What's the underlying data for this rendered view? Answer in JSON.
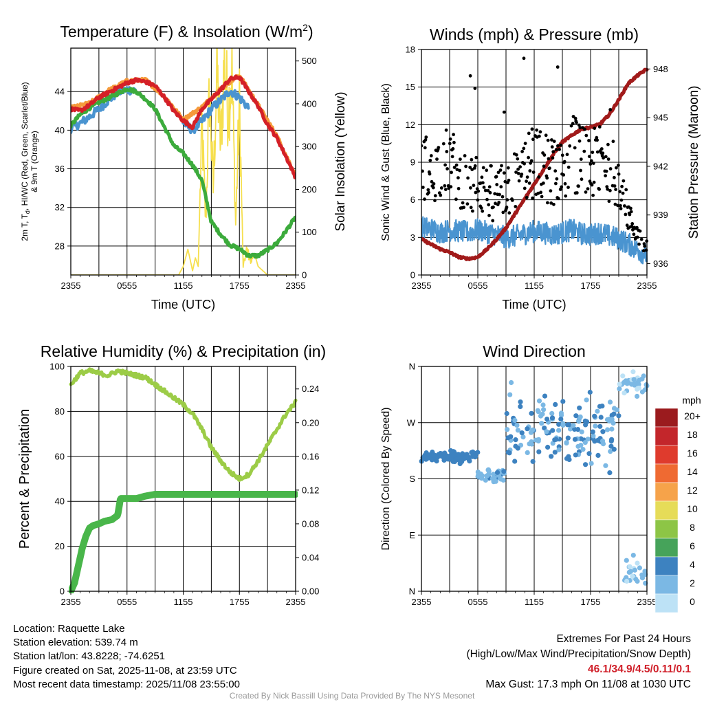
{
  "colors": {
    "red": "#d42027",
    "green": "#3cab3c",
    "blue": "#4a94d0",
    "orange": "#f59a3a",
    "yellow": "#f6df4e",
    "maroon": "#a11a1a",
    "black": "#000000",
    "rh": "#9ccc47",
    "precip": "#49b64a"
  },
  "chart_data": [
    {
      "id": "temp",
      "type": "line",
      "title": "Temperature (F) & Insolation (W/m",
      "title_sup": "2",
      "title_close": ")",
      "xlabel": "Time (UTC)",
      "ylabel_line1": "2m T, T",
      "ylabel_sub": "d",
      "ylabel_line1b": ", HI/WC (Red, Green, Scarlet/Blue)",
      "ylabel_line2": "& 9m T (Orange)",
      "ylabel_right": "Solar Insolation (Yellow)",
      "x_ticks": [
        "2355",
        "0555",
        "1155",
        "1755",
        "2355"
      ],
      "ylim": [
        25,
        48.5
      ],
      "y_ticks": [
        "28",
        "32",
        "36",
        "40",
        "44"
      ],
      "y_tick_values": [
        28,
        32,
        36,
        40,
        44
      ],
      "ylim_right": [
        0,
        530
      ],
      "y_ticks_right": [
        "0",
        "100",
        "200",
        "300",
        "400",
        "500"
      ],
      "y_tick_values_right": [
        0,
        100,
        200,
        300,
        400,
        500
      ],
      "series": [
        {
          "name": "2m T",
          "color": "red",
          "axis": "left",
          "x": [
            0,
            1,
            2,
            3,
            4,
            5,
            6,
            7,
            8,
            9,
            10,
            11,
            12,
            13,
            14,
            15,
            16,
            17,
            18,
            19,
            20,
            21,
            22,
            23,
            24
          ],
          "values": [
            42.2,
            42.0,
            42.6,
            43.4,
            43.9,
            44.4,
            44.9,
            45.2,
            45.0,
            44.6,
            43.4,
            42.0,
            41.0,
            40.3,
            42.2,
            43.2,
            44.2,
            45.3,
            45.5,
            44.0,
            42.5,
            40.6,
            39.2,
            37.2,
            35.1
          ]
        },
        {
          "name": "9m T",
          "color": "orange",
          "axis": "left",
          "x": [
            0,
            2,
            4,
            6,
            8,
            10,
            12,
            14,
            16,
            18,
            20,
            22,
            24
          ],
          "values": [
            42.3,
            42.8,
            44.1,
            45.1,
            45.2,
            43.5,
            41.1,
            42.4,
            44.3,
            45.7,
            42.6,
            39.4,
            35.3
          ]
        },
        {
          "name": "Td",
          "color": "green",
          "axis": "left",
          "x": [
            0,
            1,
            2,
            3,
            4,
            5,
            6,
            7,
            8,
            9,
            10,
            11,
            12,
            13,
            14,
            15,
            16,
            17,
            18,
            19,
            20,
            21,
            22,
            23,
            24
          ],
          "values": [
            40.5,
            41.6,
            42.3,
            42.9,
            43.3,
            43.8,
            44.3,
            44.0,
            43.2,
            42.2,
            40.3,
            38.4,
            37.6,
            36.4,
            34.8,
            30.5,
            29.2,
            28.1,
            27.7,
            27.0,
            27.0,
            27.6,
            28.3,
            29.6,
            31.0
          ]
        },
        {
          "name": "HI/WC",
          "color": "blue",
          "axis": "left",
          "x": [
            0,
            1,
            2,
            3,
            4,
            5,
            6,
            7,
            8,
            9,
            10,
            11,
            12,
            13,
            14,
            15,
            16,
            17,
            18,
            19
          ],
          "values": [
            40.2,
            40.7,
            41.4,
            42.2,
            43.1,
            43.9,
            44.2,
            44.1,
            null,
            null,
            null,
            null,
            40.8,
            40.0,
            40.9,
            42.2,
            43.1,
            44.1,
            43.4,
            42.3
          ]
        },
        {
          "name": "Solar Insolation",
          "color": "yellow",
          "axis": "right",
          "x": [
            0,
            11.5,
            12,
            12.5,
            13,
            13.3,
            13.6,
            14,
            14.4,
            14.8,
            15.2,
            15.6,
            16,
            16.4,
            16.8,
            17.2,
            17.6,
            18,
            18.4,
            18.8,
            19.2,
            19.6,
            20,
            20.5,
            21,
            22,
            24
          ],
          "values": [
            0,
            0,
            20,
            60,
            10,
            40,
            20,
            350,
            120,
            430,
            200,
            480,
            300,
            510,
            380,
            480,
            120,
            400,
            20,
            60,
            30,
            50,
            20,
            10,
            0,
            0,
            0
          ]
        }
      ]
    },
    {
      "id": "wind",
      "type": "scatter",
      "title": "Winds (mph) & Pressure (mb)",
      "xlabel": "Time (UTC)",
      "ylabel": "Sonic Wind & Gust (Blue, Black)",
      "ylabel_right": "Station Pressure (Maroon)",
      "x_ticks": [
        "2355",
        "0555",
        "1155",
        "1755",
        "2355"
      ],
      "ylim": [
        0,
        18
      ],
      "y_ticks": [
        "0",
        "3",
        "6",
        "9",
        "12",
        "15",
        "18"
      ],
      "y_tick_values": [
        0,
        3,
        6,
        9,
        12,
        15,
        18
      ],
      "ylim_right": [
        935.3,
        949.2
      ],
      "y_ticks_right": [
        "936",
        "939",
        "942",
        "945",
        "948"
      ],
      "y_tick_values_right": [
        936,
        939,
        942,
        945,
        948
      ],
      "wind_x": [
        0,
        1,
        2,
        3,
        4,
        5,
        6,
        7,
        8,
        9,
        10,
        11,
        12,
        13,
        14,
        15,
        16,
        17,
        18,
        19,
        20,
        21,
        22,
        23,
        24
      ],
      "wind_values": [
        3.8,
        3.7,
        3.4,
        3.6,
        3.5,
        3.4,
        3.6,
        3.4,
        3.2,
        3.0,
        3.1,
        3.3,
        3.5,
        3.4,
        3.2,
        3.4,
        3.6,
        3.3,
        3.2,
        3.4,
        3.1,
        2.9,
        2.5,
        2.0,
        1.6
      ],
      "gust_band_low": [
        6.2,
        5.5,
        6.0,
        6.5,
        5.5,
        4.5,
        5.0,
        4.5,
        4.2,
        4.5,
        5.0,
        5.5,
        6.0,
        5.8,
        5.5,
        6.0,
        6.5,
        6.2,
        5.8,
        6.2,
        5.8,
        5.5,
        3.5,
        2.5,
        1.5
      ],
      "gust_band_high": [
        12.5,
        10.0,
        11.5,
        12.0,
        10.5,
        9.0,
        10.0,
        9.0,
        8.5,
        9.5,
        10.0,
        11.0,
        12.0,
        11.5,
        11.0,
        12.0,
        13.0,
        12.0,
        11.5,
        12.0,
        11.5,
        10.0,
        6.0,
        4.0,
        3.0
      ],
      "gust_outliers": [
        [
          5.2,
          15.9
        ],
        [
          5.7,
          14.9
        ],
        [
          10.9,
          17.3
        ],
        [
          14.5,
          16.6
        ],
        [
          8.8,
          13.0
        ],
        [
          16.4,
          12.5
        ],
        [
          20.1,
          13.2
        ]
      ],
      "pressure_x": [
        0,
        1,
        2,
        3,
        4,
        5,
        6,
        7,
        8,
        9,
        10,
        11,
        12,
        13,
        14,
        15,
        16,
        17,
        18,
        19,
        20,
        21,
        22,
        23,
        24
      ],
      "pressure_values": [
        937.5,
        937.2,
        936.9,
        936.7,
        936.4,
        936.3,
        936.4,
        936.9,
        937.5,
        938.2,
        939.1,
        940.0,
        940.9,
        941.8,
        942.7,
        943.5,
        943.9,
        944.3,
        944.4,
        944.6,
        945.2,
        946.1,
        947.1,
        947.6,
        948.0
      ]
    },
    {
      "id": "rh",
      "type": "line",
      "title": "Relative Humidity (%) & Precipitation (in)",
      "ylabel": "Percent & Precipitation",
      "x_ticks": [
        "2355",
        "0555",
        "1155",
        "1755",
        "2355"
      ],
      "ylim": [
        0,
        100
      ],
      "y_ticks": [
        "0",
        "20",
        "40",
        "60",
        "80",
        "100"
      ],
      "y_tick_values": [
        0,
        20,
        40,
        60,
        80,
        100
      ],
      "ylim_right": [
        0,
        0.2667
      ],
      "y_ticks_right": [
        "0.00",
        "0.04",
        "0.08",
        "0.12",
        "0.16",
        "0.20",
        "0.24"
      ],
      "y_tick_values_right": [
        0,
        0.04,
        0.08,
        0.12,
        0.16,
        0.2,
        0.24
      ],
      "series": [
        {
          "name": "Relative Humidity",
          "color": "rh",
          "axis": "left",
          "x": [
            0,
            1,
            2,
            3,
            4,
            5,
            6,
            7,
            8,
            9,
            10,
            11,
            12,
            13,
            14,
            15,
            16,
            17,
            18,
            19,
            20,
            21,
            22,
            23,
            24
          ],
          "values": [
            92,
            97,
            98,
            97,
            96,
            98,
            97,
            96,
            95,
            92,
            89,
            86,
            83,
            79,
            72,
            64,
            58,
            53,
            50,
            52,
            58,
            65,
            72,
            79,
            84
          ]
        },
        {
          "name": "Precipitation",
          "color": "precip",
          "axis": "right",
          "x": [
            0,
            0.4,
            0.8,
            1.2,
            1.6,
            2,
            2.4,
            3,
            3.6,
            4.4,
            5,
            5.3,
            6,
            7,
            8,
            9,
            10,
            12,
            16,
            20,
            24
          ],
          "values": [
            0,
            0.01,
            0.03,
            0.05,
            0.065,
            0.075,
            0.078,
            0.08,
            0.083,
            0.085,
            0.09,
            0.11,
            0.11,
            0.11,
            0.113,
            0.115,
            0.115,
            0.115,
            0.115,
            0.115,
            0.115
          ]
        }
      ]
    },
    {
      "id": "dir",
      "type": "scatter",
      "title": "Wind Direction",
      "ylabel": "Direction (Colored By Speed)",
      "x_ticks": [
        "2355",
        "0555",
        "1155",
        "1755",
        "2355"
      ],
      "ylim": [
        0,
        360
      ],
      "y_ticks": [
        "N",
        "E",
        "S",
        "W",
        "N"
      ],
      "y_tick_values": [
        0,
        90,
        180,
        270,
        360
      ],
      "colorbar_title": "mph",
      "colorbar_labels": [
        "20+",
        "18",
        "16",
        "14",
        "12",
        "10",
        "8",
        "6",
        "4",
        "2",
        "0"
      ],
      "colorbar_colors": [
        "#9b1b1e",
        "#c3262b",
        "#df3b2d",
        "#ef6a32",
        "#f6a34a",
        "#e6dc58",
        "#8dc546",
        "#46a35a",
        "#3d82c0",
        "#7bb8e4",
        "#bde2f6"
      ],
      "clusters": [
        {
          "x_range": [
            0,
            6
          ],
          "dir_center": 215,
          "dir_spread": 8,
          "speed_range": [
            3,
            4.5
          ],
          "count": 90
        },
        {
          "x_range": [
            6,
            9
          ],
          "dir_center": 187,
          "dir_spread": 10,
          "speed_range": [
            2,
            3.5
          ],
          "count": 40
        },
        {
          "x_range": [
            9,
            21
          ],
          "dir_center": 260,
          "dir_spread": 55,
          "speed_range": [
            2,
            4
          ],
          "count": 160
        },
        {
          "x_range": [
            21,
            24
          ],
          "dir_center": 335,
          "dir_spread": 20,
          "speed_range": [
            0.5,
            2
          ],
          "count": 30
        },
        {
          "x_range": [
            21,
            24
          ],
          "dir_center": 30,
          "dir_spread": 25,
          "speed_range": [
            0.5,
            2
          ],
          "count": 25
        }
      ]
    }
  ],
  "station": {
    "location": "Location: Raquette Lake",
    "elevation": "Station elevation: 539.74 m",
    "latlon": "Station lat/lon: 43.8228; -74.6251",
    "created": "Figure created on Sat, 2025-11-08, at 23:59 UTC",
    "recent": "Most recent data timestamp: 2025/11/08 23:55:00"
  },
  "extremes": {
    "title": "Extremes For Past 24 Hours",
    "subtitle": "(High/Low/Max Wind/Precipitation/Snow Depth)",
    "values": "46.1/34.9/4.5/0.11/0.1",
    "max_gust": "Max Gust: 17.3 mph On 11/08 at 1030 UTC"
  },
  "credit": "Created By Nick Bassill Using Data Provided By The NYS Mesonet"
}
